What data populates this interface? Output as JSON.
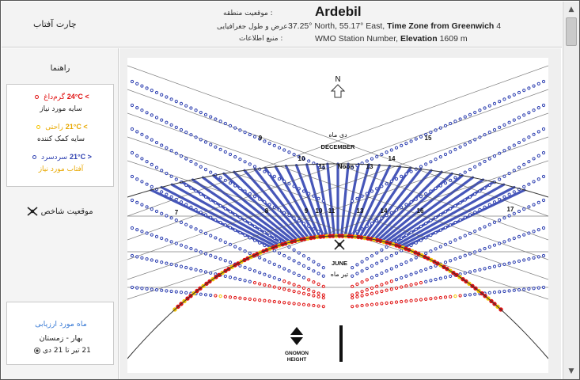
{
  "header": {
    "left_title": "چارت آفتاب",
    "site_name": "Ardebil",
    "label_location": ": موقعیت منطقه",
    "label_coordinates": ": عرض و طول جغرافیایی",
    "label_source": ": منبع اطلاعات",
    "coordinates_text": "37.25° North, 55.17° East,",
    "timezone_label": "Time Zone from Greenwich",
    "timezone_value": "4",
    "wmo_text": "WMO Station Number,",
    "elevation_label": "Elevation",
    "elevation_value": "1609 m"
  },
  "legend": {
    "title": "راهنما",
    "hot_temp": "> 24°C",
    "hot_label": "گرم‌داغ",
    "hot_desc": "سایه مورد نیاز",
    "warm_temp": "> 21°C",
    "warm_label": "راحتی",
    "warm_desc": "سایه کمک کننده",
    "cold_temp": "< 21°C",
    "cold_label": "سرد‌سرد",
    "cold_desc": "آفتاب مورد نیاز",
    "gnomon_position": "موقعیت شاخص",
    "colors": {
      "hot": "#e01010",
      "warm": "#f5c400",
      "cold": "#2d3fb0",
      "warm_text": "#e8a800"
    }
  },
  "month_selector": {
    "title": "ماه مورد ارزیابی",
    "season": "بهار - زمستان",
    "range": "21 تیر تا 21 دی",
    "selected": true
  },
  "chart_data": {
    "type": "sun-chart",
    "north_label": "N",
    "winter_month_fa": "دی ماه",
    "winter_month_en": "DECEMBER",
    "summer_month_en": "JUNE",
    "summer_month_fa": "تیر ماه",
    "gnomon_label": "GNOMON HEIGHT",
    "december_hour_labels": [
      "9",
      "10",
      "11",
      "Noon",
      "13",
      "14",
      "15"
    ],
    "june_hour_labels": [
      "7",
      "8",
      "9",
      "10",
      "11",
      "13",
      "14",
      "16",
      "17"
    ]
  }
}
